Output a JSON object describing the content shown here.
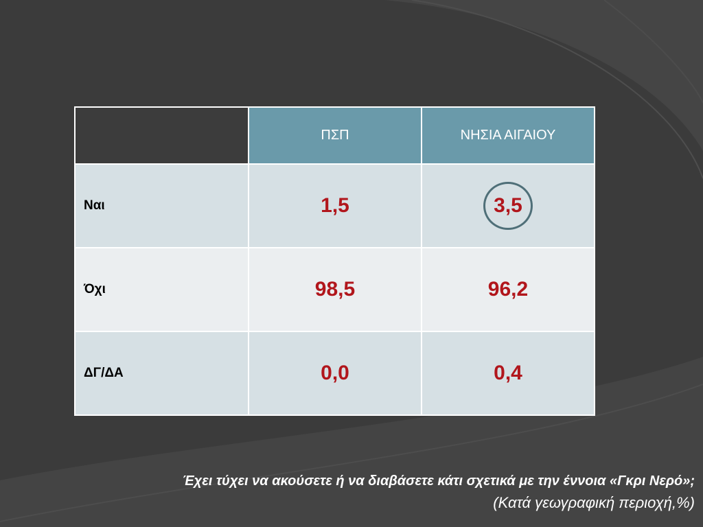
{
  "colors": {
    "background": "#3b3b3b",
    "header_fill": "#6a9aaa",
    "row_fill_a": "#d6e0e4",
    "row_fill_b": "#ebeef0",
    "value_text": "#b1161c",
    "highlight_circle": "#4f6f78"
  },
  "table": {
    "columns": [
      "ΠΣΠ",
      "ΝΗΣΙΑ ΑΙΓΑΙΟΥ"
    ],
    "rows": [
      {
        "label": "Ναι",
        "values": [
          "1,5",
          "3,5"
        ],
        "highlighted": [
          false,
          true
        ]
      },
      {
        "label": "Όχι",
        "values": [
          "98,5",
          "96,2"
        ],
        "highlighted": [
          false,
          false
        ]
      },
      {
        "label": "ΔΓ/ΔΑ",
        "values": [
          "0,0",
          "0,4"
        ],
        "highlighted": [
          false,
          false
        ]
      }
    ]
  },
  "caption": {
    "question": "Έχει τύχει να ακούσετε ή να διαβάσετε κάτι σχετικά με την έννοια «Γκρι Νερό»;",
    "note": "(Κατά γεωγραφική περιοχή,%)"
  }
}
